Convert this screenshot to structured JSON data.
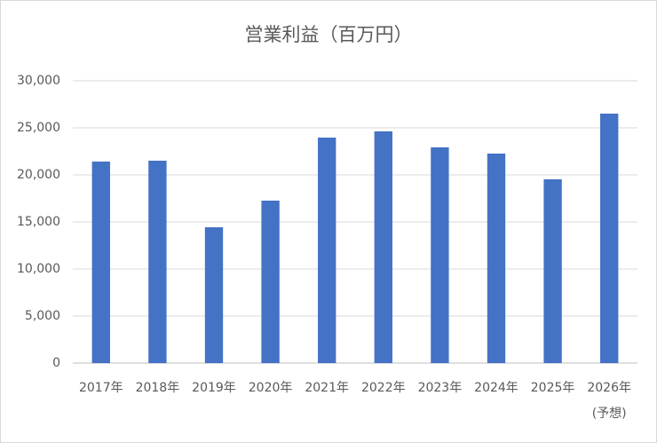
{
  "chart_data": {
    "type": "bar",
    "title": "営業利益（百万円）",
    "categories": [
      "2017年",
      "2018年",
      "2019年",
      "2020年",
      "2021年",
      "2022年",
      "2023年",
      "2024年",
      "2025年",
      "2026年\n(予想)"
    ],
    "values": [
      21415,
      21509,
      14434,
      17264,
      23962,
      24623,
      22925,
      22264,
      19528,
      26509
    ],
    "color": "#4472c4",
    "ylim": [
      0,
      30000
    ],
    "yticks": [
      0,
      {
        "value": 5000,
        "label": "5,000"
      },
      {
        "value": 10000,
        "label": "10,000"
      },
      {
        "value": 15000,
        "label": "15,000"
      },
      {
        "value": 20000,
        "label": "20,000"
      },
      {
        "value": 25000,
        "label": "25,000"
      },
      {
        "value": 30000,
        "label": "30,000"
      }
    ],
    "grid": true
  }
}
